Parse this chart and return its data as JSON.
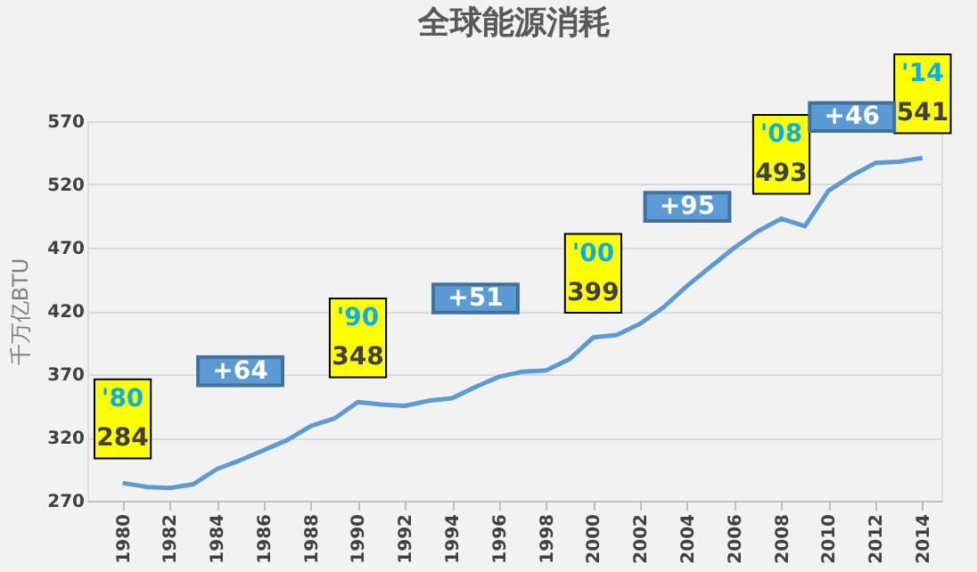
{
  "chart_data": {
    "type": "line",
    "title": "全球能源消耗",
    "ylabel": "千万亿BTU",
    "x": [
      1980,
      1981,
      1982,
      1983,
      1984,
      1985,
      1986,
      1987,
      1988,
      1989,
      1990,
      1991,
      1992,
      1993,
      1994,
      1995,
      1996,
      1997,
      1998,
      1999,
      2000,
      2001,
      2002,
      2003,
      2004,
      2005,
      2006,
      2007,
      2008,
      2009,
      2010,
      2011,
      2012,
      2013,
      2014
    ],
    "series": [
      {
        "color": "#5b9bd5",
        "values": [
          284,
          281,
          280,
          283,
          295,
          302,
          310,
          318,
          329,
          335,
          348,
          346,
          345,
          349,
          351,
          360,
          368,
          372,
          373,
          382,
          399,
          401,
          410,
          423,
          440,
          455,
          470,
          483,
          493,
          487,
          515,
          527,
          537,
          538,
          541
        ],
        "value_labels": [
          "284",
          null,
          null,
          null,
          null,
          null,
          null,
          null,
          null,
          null,
          "348",
          null,
          null,
          null,
          null,
          null,
          null,
          null,
          null,
          null,
          "399",
          null,
          null,
          null,
          null,
          null,
          null,
          null,
          "493",
          null,
          null,
          null,
          null,
          null,
          "541"
        ]
      }
    ],
    "annotations": [
      {
        "text": "'80",
        "x": 1980,
        "y": 284
      },
      {
        "text": "'90",
        "x": 1990,
        "y": 348
      },
      {
        "text": "'00",
        "x": 2000,
        "y": 399
      },
      {
        "text": "'08",
        "x": 2008,
        "y": 493
      },
      {
        "text": "'14",
        "x": 2014,
        "y": 541
      },
      "+64",
      "+51",
      "+95",
      "+46"
    ],
    "xlim": [
      1978.5,
      2014.8
    ],
    "xticks": [
      1980,
      1982,
      1984,
      1986,
      1988,
      1990,
      1992,
      1994,
      1996,
      1998,
      2000,
      2002,
      2004,
      2006,
      2008,
      2010,
      2012,
      2014
    ],
    "ylim": [
      270,
      570
    ],
    "yticks": [
      270,
      320,
      370,
      420,
      470,
      520,
      570
    ],
    "grid": "y",
    "marker": "none",
    "line_style": "solid"
  }
}
